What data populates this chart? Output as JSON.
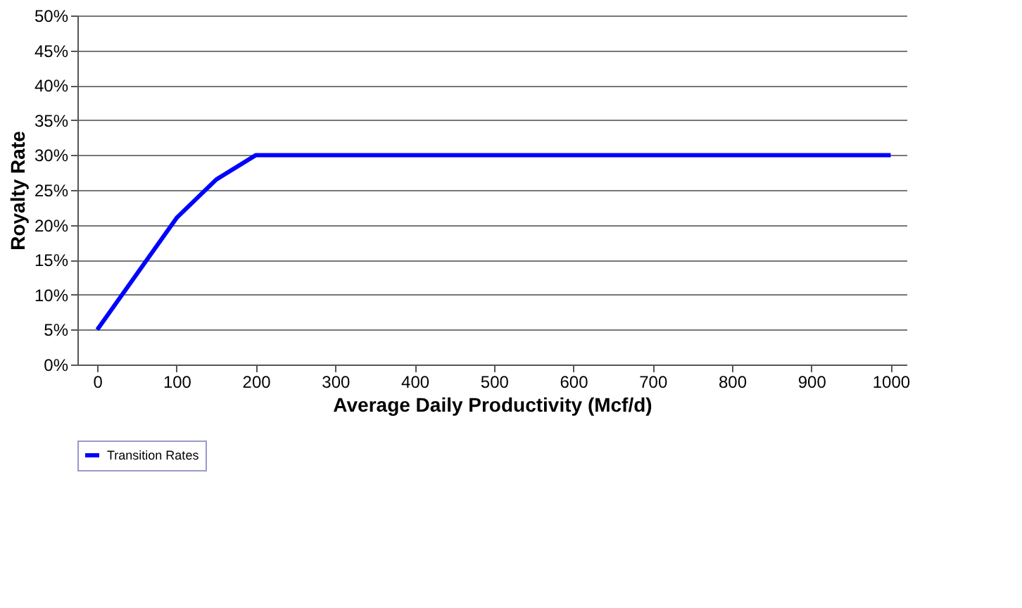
{
  "chart_data": {
    "type": "line",
    "xlabel": "Average Daily Productivity (Mcf/d)",
    "ylabel": "Royalty Rate",
    "x": [
      0,
      100,
      150,
      200,
      1000
    ],
    "series": [
      {
        "name": "Transition Rates",
        "color": "#0000ff",
        "values": [
          5,
          21,
          26.5,
          30,
          30
        ]
      }
    ],
    "xlim": [
      -25,
      1020
    ],
    "xticks": [
      0,
      100,
      200,
      300,
      400,
      500,
      600,
      700,
      800,
      900,
      1000
    ],
    "ylim": [
      0,
      50
    ],
    "yticks": [
      {
        "value": 0,
        "label": "0%"
      },
      {
        "value": 5,
        "label": "5%"
      },
      {
        "value": 10,
        "label": "10%"
      },
      {
        "value": 15,
        "label": "15%"
      },
      {
        "value": 20,
        "label": "20%"
      },
      {
        "value": 25,
        "label": "25%"
      },
      {
        "value": 30,
        "label": "30%"
      },
      {
        "value": 35,
        "label": "35%"
      },
      {
        "value": 40,
        "label": "40%"
      },
      {
        "value": 45,
        "label": "45%"
      },
      {
        "value": 50,
        "label": "50%"
      }
    ],
    "grid": "y",
    "legend": "bottom",
    "marker": "none",
    "line_style": "solid"
  }
}
